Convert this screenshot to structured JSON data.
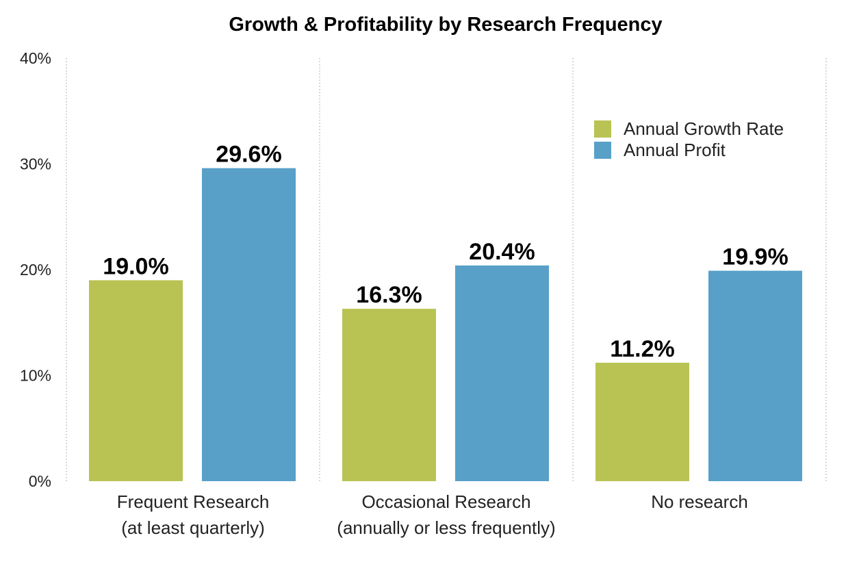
{
  "chart_data": {
    "type": "bar",
    "title": "Growth & Profitability by Research Frequency",
    "categories": [
      [
        "Frequent Research",
        "(at least quarterly)"
      ],
      [
        "Occasional Research",
        "(annually or less frequently)"
      ],
      [
        "No research"
      ]
    ],
    "series": [
      {
        "name": "Annual Growth Rate",
        "color": "#b8c353",
        "values": [
          19.0,
          16.3,
          11.2
        ],
        "labels": [
          "19.0%",
          "16.3%",
          "11.2%"
        ]
      },
      {
        "name": "Annual Profit",
        "color": "#58a0c8",
        "values": [
          29.6,
          20.4,
          19.9
        ],
        "labels": [
          "29.6%",
          "20.4%",
          "19.9%"
        ]
      }
    ],
    "ylim": [
      0,
      40
    ],
    "yticks": [
      0,
      10,
      20,
      30,
      40
    ],
    "ytick_labels": [
      "0%",
      "10%",
      "20%",
      "30%",
      "40%"
    ],
    "xlabel": "",
    "ylabel": "",
    "grid": "vertical dotted separators between categories",
    "legend_position": "top-right"
  }
}
